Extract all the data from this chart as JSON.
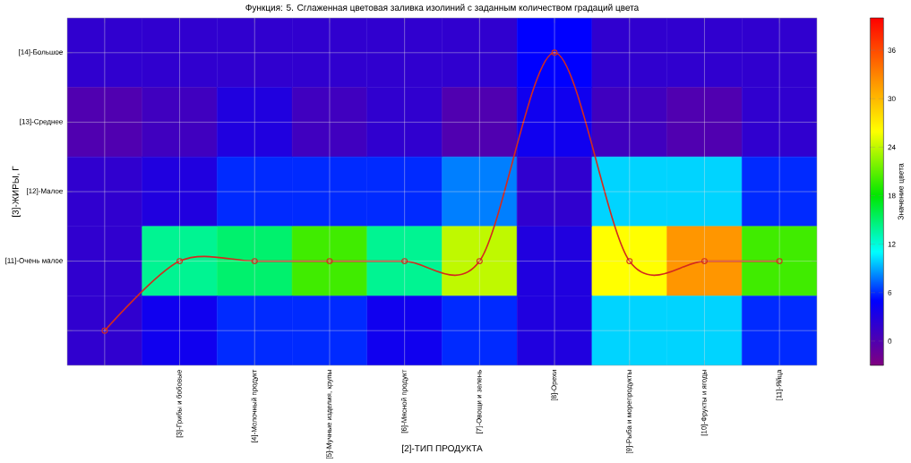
{
  "chart_data": {
    "type": "heatmap",
    "title": "Функция: 5. Сглаженная цветовая заливка изолиний с заданным количеством градаций цвета",
    "xlabel": "[2]-ТИП ПРОДУКТА",
    "ylabel": "[3]-ЖИРЫ, Г",
    "clabel": "Значение цвета",
    "categories": [
      null,
      "[3]-Грибы и бобовые",
      "[4]-Молочный продукт",
      "[5]-Мучные изделия, крупы",
      "[6]-Мясной продукт",
      "[7]-Овощи и зелень",
      "[8]-Орехи",
      "[9]-Рыба и морепродукты",
      "[10]-Фрукты и ягоды",
      "[11]-Яйца"
    ],
    "y_categories": [
      "[14]-Большое",
      "[13]-Среднее",
      "[12]-Малое",
      "[11]-Очень малое",
      null
    ],
    "cells": [
      [
        2,
        2,
        2,
        2,
        2,
        2,
        5,
        2,
        2,
        2
      ],
      [
        0,
        1,
        3,
        1,
        2,
        0,
        4,
        1,
        0,
        2
      ],
      [
        2,
        3,
        6,
        6,
        6,
        8,
        2,
        10,
        10,
        6
      ],
      [
        2,
        14,
        15,
        20,
        14,
        24,
        3,
        26,
        32,
        20
      ],
      [
        2,
        4,
        6,
        6,
        4,
        6,
        3,
        10,
        10,
        6
      ]
    ],
    "clim": [
      -3,
      40
    ],
    "cticks": [
      0,
      6,
      12,
      18,
      24,
      30,
      36
    ],
    "grid": true,
    "series": [
      {
        "type": "line",
        "color": "#d42a1e",
        "marker": "circle",
        "values": [
          4,
          3,
          3,
          3,
          3,
          3,
          0,
          3,
          3,
          3
        ]
      }
    ]
  }
}
